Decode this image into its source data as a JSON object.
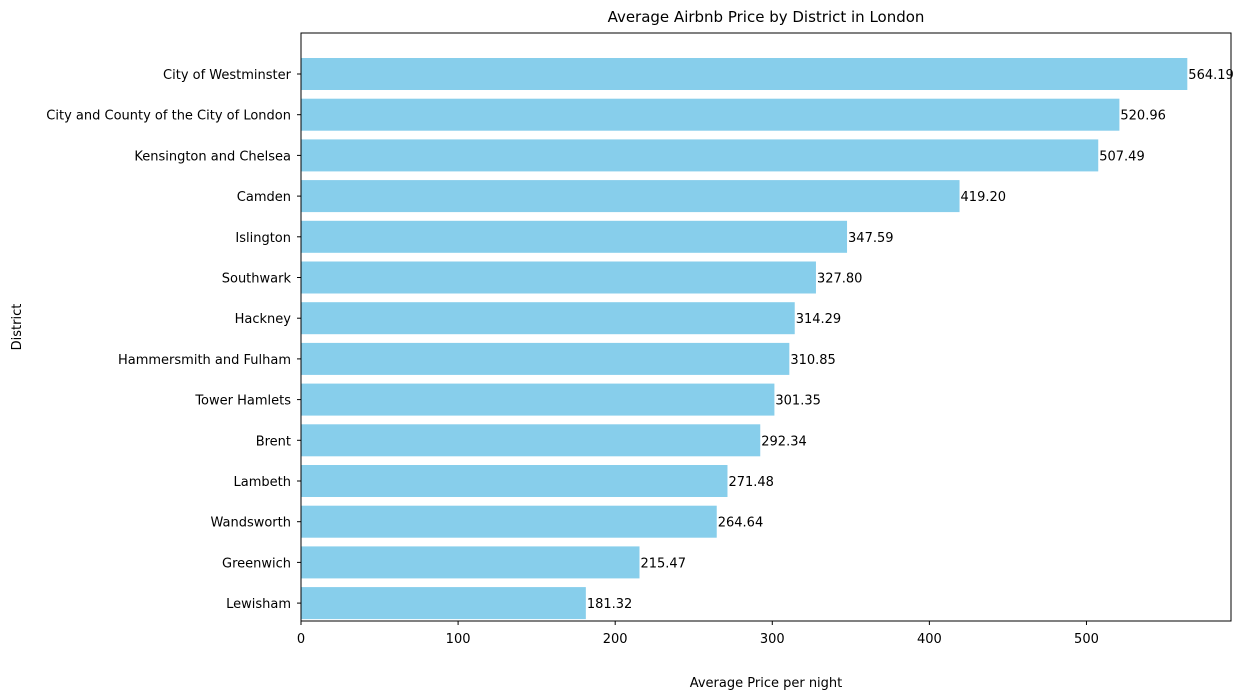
{
  "chart_data": {
    "type": "bar",
    "orientation": "horizontal",
    "title": "Average Airbnb Price by District in London",
    "xlabel": "Average Price per night",
    "ylabel": "District",
    "xlim": [
      0,
      592
    ],
    "xticks": [
      0,
      100,
      200,
      300,
      400,
      500
    ],
    "grid": false,
    "bar_color": "#87ceeb",
    "categories": [
      "City of Westminster",
      "City and County of the City of London",
      "Kensington and Chelsea",
      "Camden",
      "Islington",
      "Southwark",
      "Hackney",
      "Hammersmith and Fulham",
      "Tower Hamlets",
      "Brent",
      "Lambeth",
      "Wandsworth",
      "Greenwich",
      "Lewisham"
    ],
    "values": [
      564.19,
      520.96,
      507.49,
      419.2,
      347.59,
      327.8,
      314.29,
      310.85,
      301.35,
      292.34,
      271.48,
      264.64,
      215.47,
      181.32
    ],
    "value_labels": [
      "564.19",
      "520.96",
      "507.49",
      "419.20",
      "347.59",
      "327.80",
      "314.29",
      "310.85",
      "301.35",
      "292.34",
      "271.48",
      "264.64",
      "215.47",
      "181.32"
    ]
  }
}
